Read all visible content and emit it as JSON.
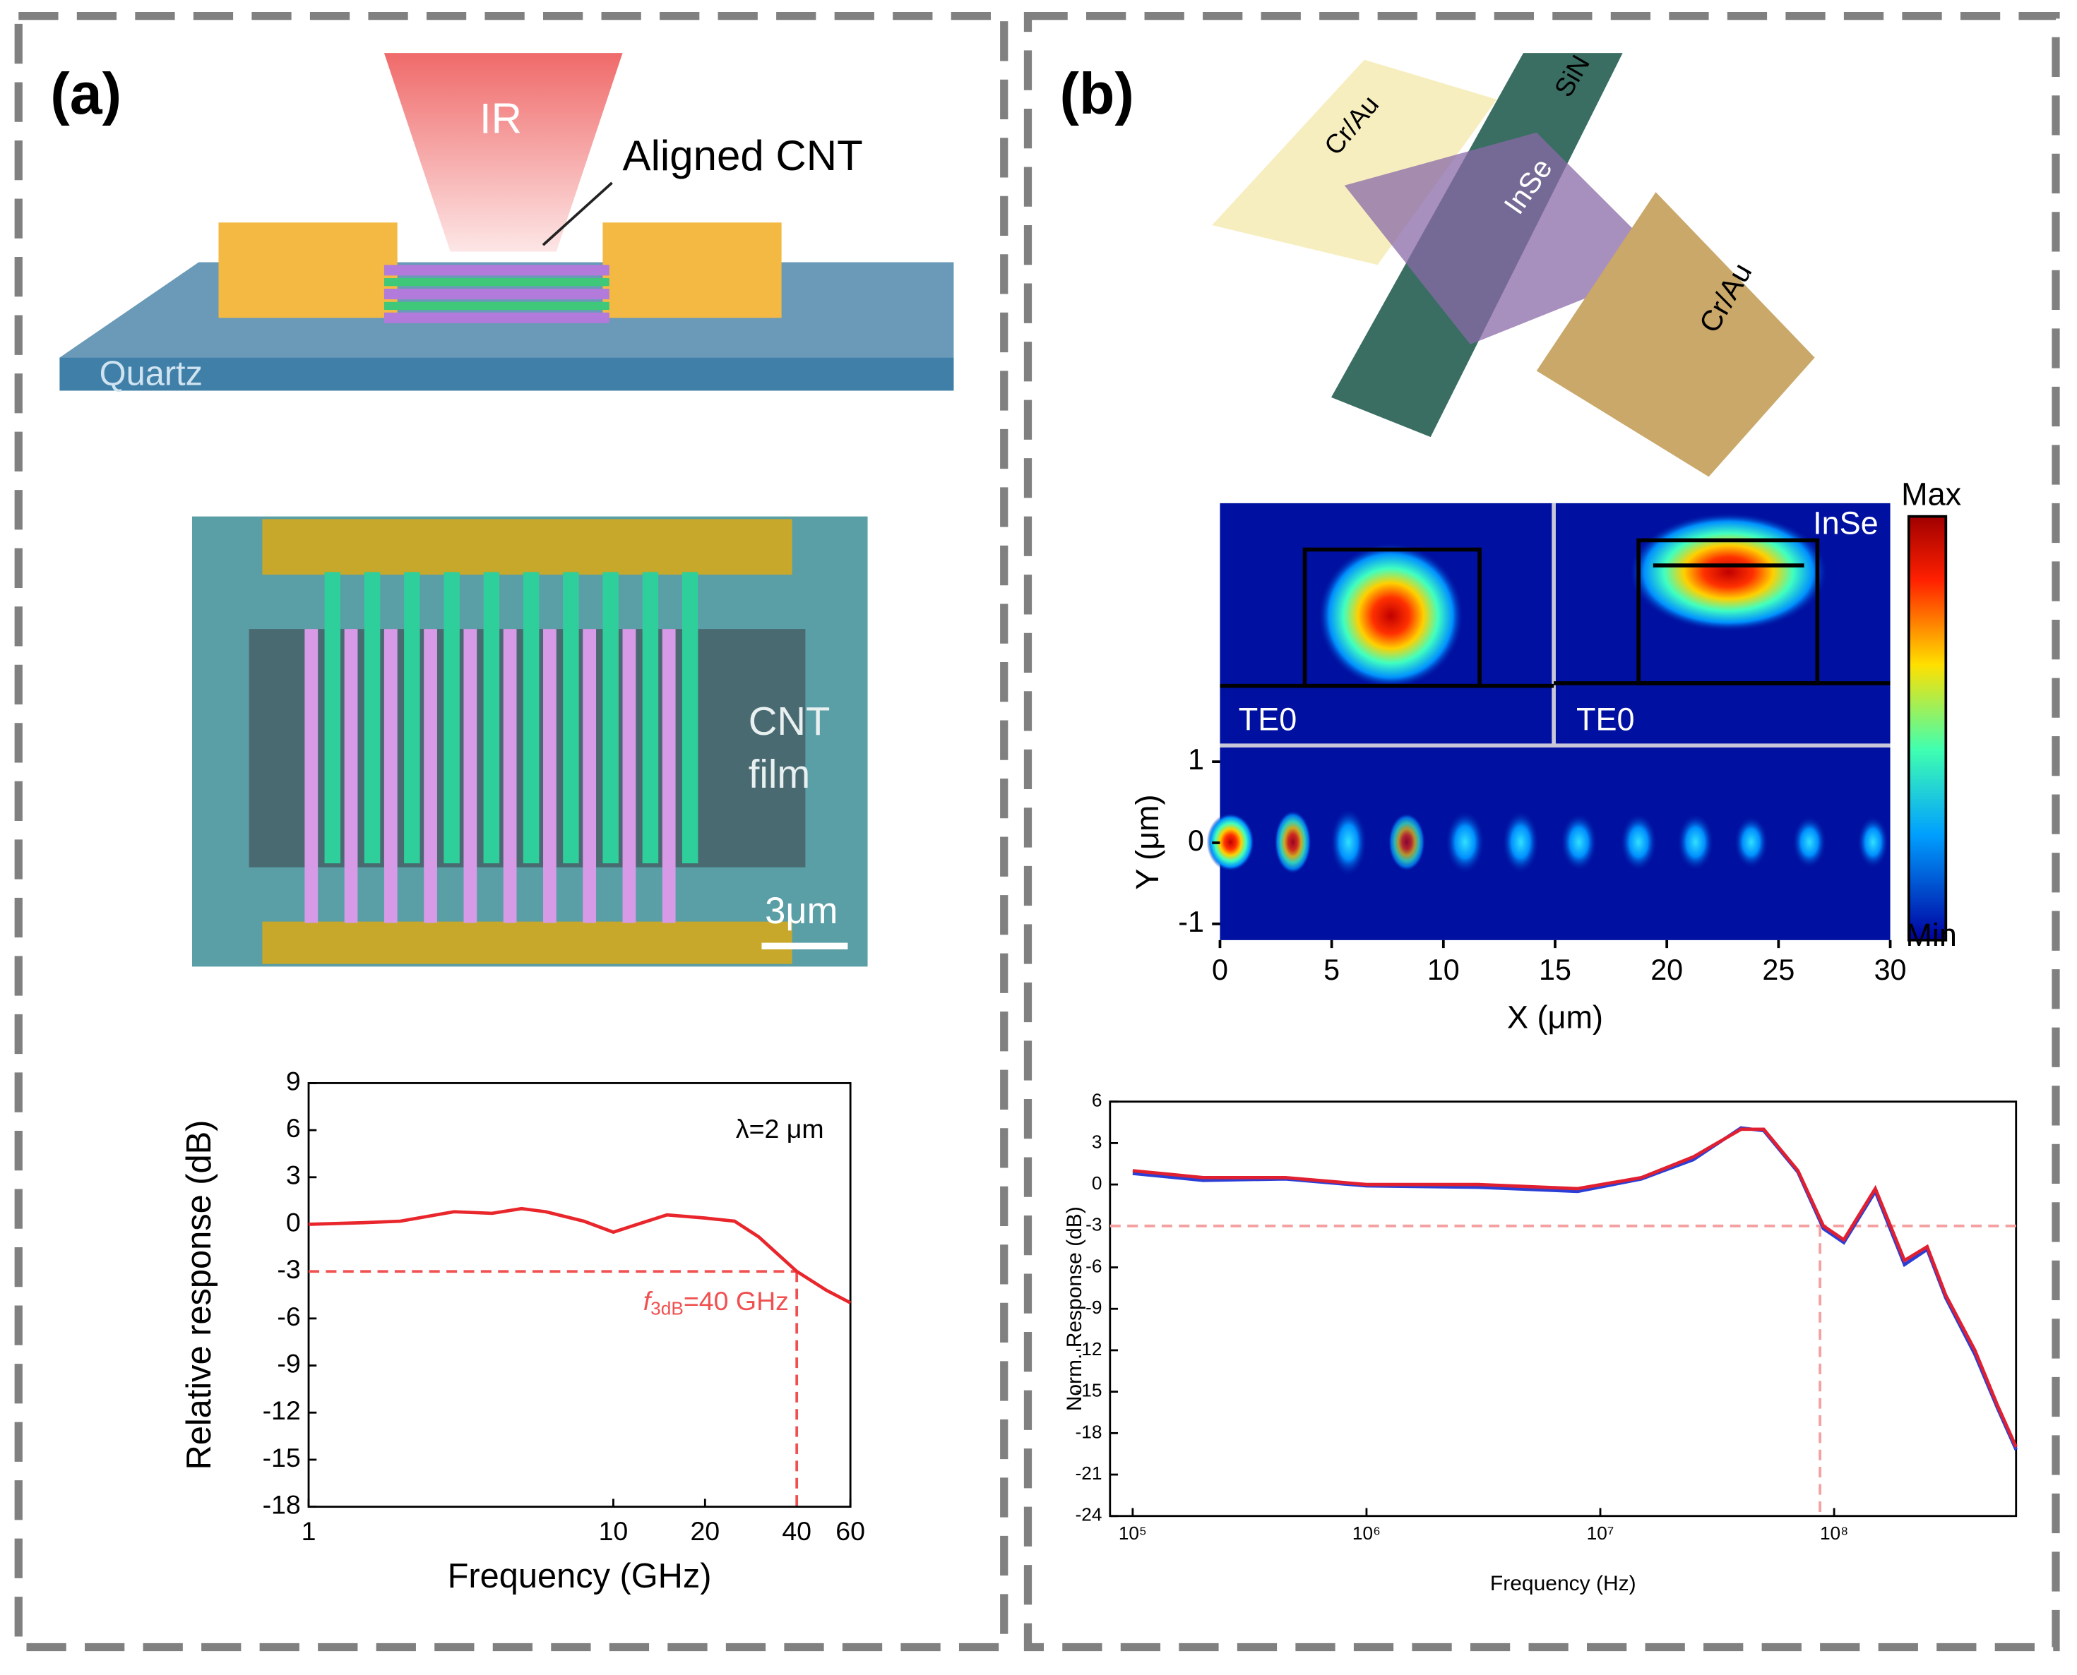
{
  "panel_a": {
    "label": "(a)",
    "schematic": {
      "beam": "IR",
      "pointer": "Aligned CNT",
      "substrate": "Quartz"
    },
    "sem": {
      "region": [
        "CNT",
        "film"
      ],
      "scale_bar": "3μm"
    }
  },
  "panel_b": {
    "label": "(b)",
    "schematic": {
      "electrode_1": "Cr/Au",
      "waveguide": "SiN",
      "material": "InSe",
      "electrode_2": "Cr/Au"
    },
    "mode_profile": {
      "insets": [
        "TE0",
        "TE0"
      ],
      "inset_material": "InSe",
      "colorbar": [
        "Max",
        "Min"
      ],
      "x_label": "X (μm)",
      "y_label": "Y (μm)",
      "xlim": [
        0,
        30
      ],
      "xticks": [
        0,
        5,
        10,
        15,
        20,
        25,
        30
      ],
      "ylim": [
        -1.2,
        1.2
      ],
      "yticks": [
        -1,
        0,
        1
      ]
    }
  },
  "chart_data": [
    {
      "type": "line",
      "x_label": "Frequency (GHz)",
      "y_label": "Relative response (dB)",
      "annotation": "λ=2 μm",
      "cutoff_label": [
        "f",
        "3dB",
        "=40 GHz"
      ],
      "log_x": true,
      "xlim": [
        1,
        60
      ],
      "xticks": [
        1,
        10,
        20,
        40,
        60
      ],
      "ylim": [
        -18,
        9
      ],
      "yticks": [
        -18,
        -15,
        -12,
        -9,
        -6,
        -3,
        0,
        3,
        6,
        9
      ],
      "threshold": -3,
      "cutoff": 40,
      "guide_color": "#f05050",
      "x": [
        1,
        1.5,
        2,
        3,
        4,
        5,
        6,
        8,
        10,
        12,
        15,
        20,
        25,
        30,
        40,
        50,
        60
      ],
      "series": [
        {
          "color": "#e8262b",
          "values": [
            0,
            0.1,
            0.2,
            0.8,
            0.7,
            1.0,
            0.8,
            0.2,
            -0.5,
            0,
            0.6,
            0.4,
            0.2,
            -0.8,
            -3,
            -4.2,
            -5
          ]
        }
      ]
    },
    {
      "type": "line",
      "x_label": "Frequency (Hz)",
      "y_label": "Norm. Response (dB)",
      "log_x": true,
      "xlim": [
        80000,
        600000000
      ],
      "xticks": [
        {
          "value": 100000,
          "label": "10⁵"
        },
        {
          "value": 1000000,
          "label": "10⁶"
        },
        {
          "value": 10000000,
          "label": "10⁷"
        },
        {
          "value": 100000000,
          "label": "10⁸"
        }
      ],
      "ylim": [
        -24,
        6
      ],
      "yticks": [
        -24,
        -21,
        -18,
        -15,
        -12,
        -9,
        -6,
        -3,
        0,
        3,
        6
      ],
      "threshold": -3,
      "cutoff": 87000000,
      "guide_color": "#f4a0a0",
      "x": [
        100000,
        200000,
        450000,
        1000000,
        3000000,
        8000000,
        15000000,
        25000000,
        40000000,
        50000000,
        70000000,
        90000000,
        110000000,
        150000000,
        200000000,
        250000000,
        300000000,
        400000000,
        500000000,
        600000000
      ],
      "series": [
        {
          "color": "#2b3fd6",
          "values": [
            0.8,
            0.3,
            0.4,
            -0.1,
            -0.2,
            -0.5,
            0.4,
            1.8,
            4.1,
            3.9,
            0.9,
            -3.2,
            -4.2,
            -0.5,
            -5.8,
            -4.7,
            -8.2,
            -12.3,
            -16.2,
            -19.2
          ]
        },
        {
          "color": "#e02030",
          "values": [
            1,
            0.5,
            0.5,
            0,
            0,
            -0.3,
            0.5,
            2,
            4,
            4,
            1,
            -3,
            -4,
            -0.3,
            -5.5,
            -4.5,
            -8,
            -12,
            -16,
            -19
          ]
        }
      ]
    }
  ]
}
